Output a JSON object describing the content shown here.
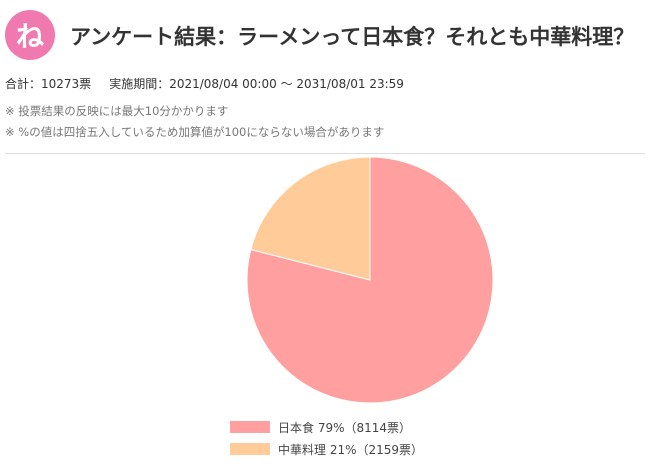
{
  "header": {
    "logo_text": "ね",
    "title": "アンケート結果：ラーメンって日本食？それとも中華料理？"
  },
  "meta": {
    "total": "合計：10273票",
    "period": "実施期間：2021/08/04 00:00 〜 2031/08/01 23:59"
  },
  "notes": [
    "※ 投票結果の反映には最大10分かかります",
    "※ %の値は四捨五入しているため加算値が100にならない場合があります"
  ],
  "colors": {
    "brand": "#f07ab0",
    "slice_japanese": "#ff9f9f",
    "slice_chinese": "#ffcc99"
  },
  "chart_data": {
    "type": "pie",
    "slices": [
      {
        "label": "日本食",
        "percent": 79,
        "votes": 8114,
        "color": "#ff9f9f"
      },
      {
        "label": "中華料理",
        "percent": 21,
        "votes": 2159,
        "color": "#ffcc99"
      }
    ],
    "legend": [
      "日本食 79%（8114票）",
      "中華料理 21%（2159票）"
    ],
    "legend_position": "bottom"
  }
}
